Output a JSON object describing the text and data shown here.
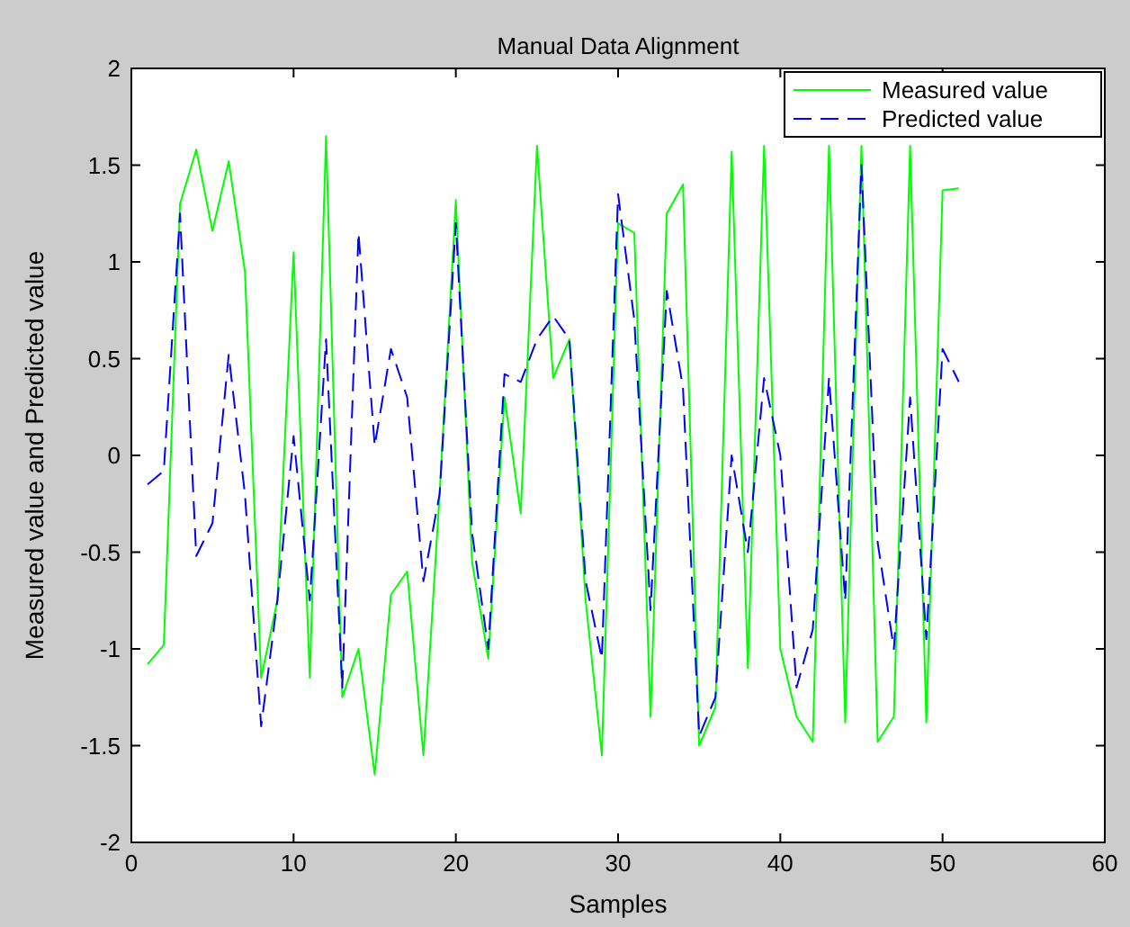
{
  "chart_data": {
    "type": "line",
    "title": "Manual Data Alignment",
    "xlabel": "Samples",
    "ylabel": "Measured value and Predicted value",
    "x": [
      1,
      2,
      3,
      4,
      5,
      6,
      7,
      8,
      9,
      10,
      11,
      12,
      13,
      14,
      15,
      16,
      17,
      18,
      19,
      20,
      21,
      22,
      23,
      24,
      25,
      26,
      27,
      28,
      29,
      30,
      31,
      32,
      33,
      34,
      35,
      36,
      37,
      38,
      39,
      40,
      41,
      42,
      43,
      44,
      45,
      46,
      47,
      48,
      49,
      50,
      51
    ],
    "series": [
      {
        "name": "Measured value",
        "color": "#00ff00",
        "line_style": "solid",
        "values": [
          -1.08,
          -0.98,
          1.3,
          1.58,
          1.16,
          1.52,
          0.95,
          -1.15,
          -0.75,
          1.05,
          -1.15,
          1.65,
          -1.25,
          -1.0,
          -1.65,
          -0.72,
          -0.6,
          -1.55,
          -0.2,
          1.32,
          -0.55,
          -1.05,
          0.3,
          -0.3,
          1.6,
          0.4,
          0.6,
          -0.75,
          -1.55,
          1.2,
          1.15,
          -1.35,
          1.25,
          1.4,
          -1.5,
          -1.3,
          1.57,
          -1.1,
          1.6,
          -1.0,
          -1.35,
          -1.48,
          1.6,
          -1.38,
          1.6,
          -1.48,
          -1.35,
          1.6,
          -1.38,
          1.37,
          1.38
        ]
      },
      {
        "name": "Predicted value",
        "color": "#0000ff",
        "line_style": "dashed",
        "values": [
          -0.15,
          -0.08,
          1.25,
          -0.52,
          -0.35,
          0.52,
          -0.2,
          -1.4,
          -0.75,
          0.1,
          -0.75,
          0.6,
          -1.2,
          1.15,
          0.05,
          0.55,
          0.3,
          -0.65,
          -0.2,
          1.2,
          -0.4,
          -1.0,
          0.42,
          0.38,
          0.6,
          0.72,
          0.6,
          -0.65,
          -1.05,
          1.35,
          0.7,
          -0.8,
          0.85,
          0.35,
          -1.45,
          -1.25,
          0.0,
          -0.5,
          0.4,
          0.0,
          -1.2,
          -0.9,
          0.4,
          -0.75,
          1.5,
          -0.45,
          -1.0,
          0.3,
          -0.95,
          0.55,
          0.38
        ]
      }
    ],
    "xlim": [
      0,
      60
    ],
    "xticks": [
      0,
      10,
      20,
      30,
      40,
      50,
      60
    ],
    "ylim": [
      -2,
      2
    ],
    "yticks": [
      -2,
      -1.5,
      -1,
      -0.5,
      0,
      0.5,
      1,
      1.5,
      2
    ],
    "grid": false,
    "legend": "top right",
    "marker": "none"
  }
}
